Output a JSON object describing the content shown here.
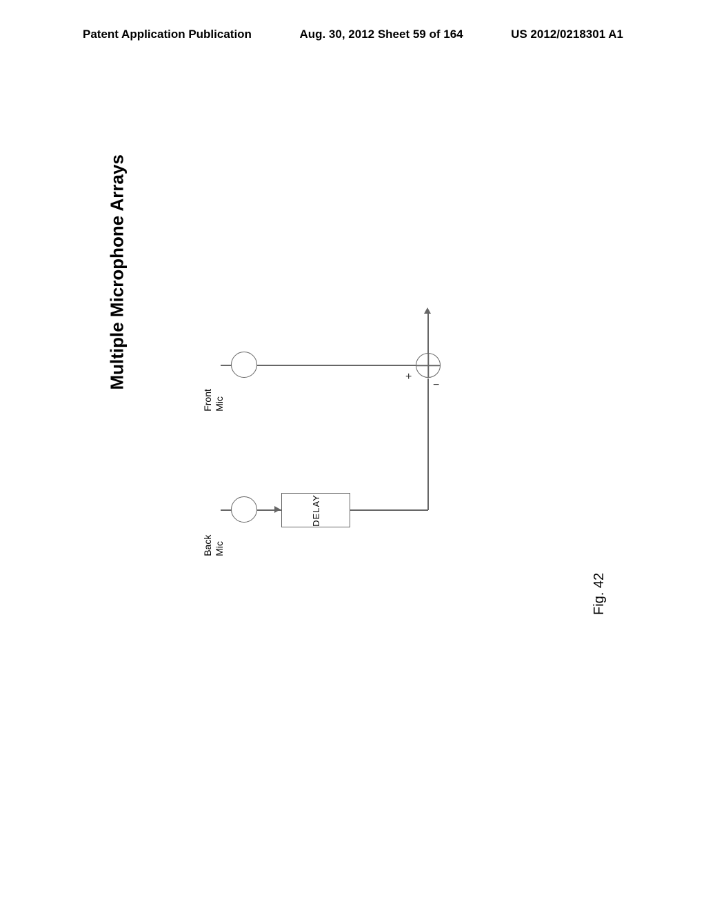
{
  "header": {
    "left": "Patent Application Publication",
    "center": "Aug. 30, 2012  Sheet 59 of 164",
    "right": "US 2012/0218301 A1"
  },
  "title": "Multiple Microphone Arrays",
  "figure_label": "Fig. 42",
  "diagram": {
    "front_mic_label": "Front\nMic",
    "back_mic_label": "Back\nMic",
    "delay_label": "DELAY",
    "plus": "+",
    "minus": "−",
    "stroke_color": "#666666",
    "stroke_width": 1.5,
    "circle_diameter": 38,
    "delay_box": {
      "width": 100,
      "height": 50
    }
  },
  "colors": {
    "background": "#ffffff",
    "text": "#000000",
    "line": "#666666"
  },
  "fonts": {
    "header_size": 17,
    "title_size": 26,
    "fig_label_size": 20,
    "mic_label_size": 14,
    "delay_size": 13
  }
}
